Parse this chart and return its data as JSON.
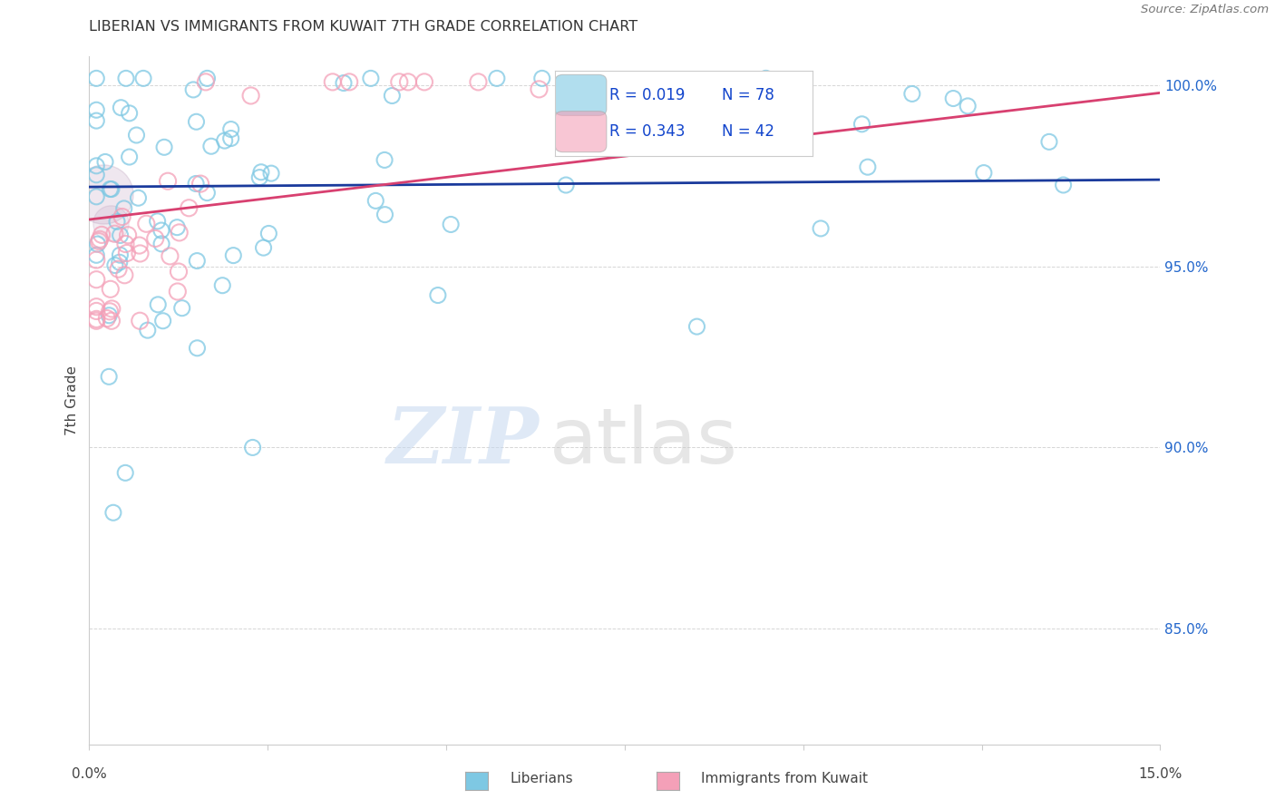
{
  "title": "LIBERIAN VS IMMIGRANTS FROM KUWAIT 7TH GRADE CORRELATION CHART",
  "source": "Source: ZipAtlas.com",
  "ylabel": "7th Grade",
  "watermark_zip": "ZIP",
  "watermark_atlas": "atlas",
  "legend_blue_r": "R = 0.019",
  "legend_blue_n": "N = 78",
  "legend_pink_r": "R = 0.343",
  "legend_pink_n": "N = 42",
  "blue_color": "#7ec8e3",
  "pink_color": "#f4a0b8",
  "blue_line_color": "#1a3a9c",
  "pink_line_color": "#d84070",
  "xmin": 0.0,
  "xmax": 0.15,
  "ymin": 0.818,
  "ymax": 1.008,
  "yticks": [
    0.85,
    0.9,
    0.95,
    1.0
  ],
  "ytick_labels": [
    "85.0%",
    "90.0%",
    "95.0%",
    "100.0%"
  ],
  "blue_trend_y0": 0.972,
  "blue_trend_y1": 0.974,
  "pink_trend_y0": 0.963,
  "pink_trend_y1": 0.998,
  "grid_color": "#cccccc",
  "title_fontsize": 11.5,
  "label_fontsize": 11,
  "tick_fontsize": 11,
  "legend_r_color": "#1144cc",
  "legend_n_color": "#1144cc"
}
